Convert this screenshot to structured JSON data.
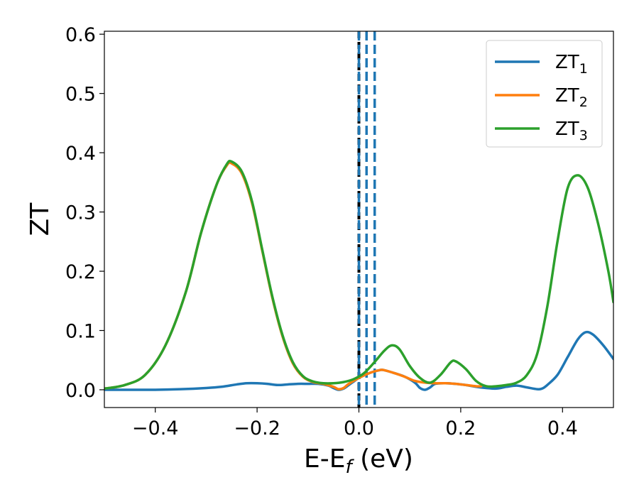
{
  "chart_data": {
    "type": "line",
    "xlabel": {
      "main": "E-E",
      "sub": "f",
      "suffix": " (eV)"
    },
    "ylabel": "ZT",
    "xlim": [
      -0.5,
      0.5
    ],
    "ylim": [
      -0.03,
      0.605
    ],
    "xticks": [
      {
        "value": -0.4,
        "label": "−0.4"
      },
      {
        "value": -0.2,
        "label": "−0.2"
      },
      {
        "value": 0.0,
        "label": "0.0"
      },
      {
        "value": 0.2,
        "label": "0.2"
      },
      {
        "value": 0.4,
        "label": "0.4"
      }
    ],
    "yticks": [
      {
        "value": 0.0,
        "label": "0.0"
      },
      {
        "value": 0.1,
        "label": "0.1"
      },
      {
        "value": 0.2,
        "label": "0.2"
      },
      {
        "value": 0.3,
        "label": "0.3"
      },
      {
        "value": 0.4,
        "label": "0.4"
      },
      {
        "value": 0.5,
        "label": "0.5"
      },
      {
        "value": 0.6,
        "label": "0.6"
      }
    ],
    "grid": false,
    "legend_position": "top-right",
    "series": [
      {
        "name": "ZT",
        "sub": "1",
        "color": "#1f77b4",
        "points": [
          [
            -0.5,
            0.0
          ],
          [
            -0.45,
            0.0
          ],
          [
            -0.4,
            0.0
          ],
          [
            -0.35,
            0.001
          ],
          [
            -0.3,
            0.003
          ],
          [
            -0.27,
            0.005
          ],
          [
            -0.24,
            0.009
          ],
          [
            -0.22,
            0.011
          ],
          [
            -0.2,
            0.011
          ],
          [
            -0.18,
            0.01
          ],
          [
            -0.16,
            0.008
          ],
          [
            -0.14,
            0.009
          ],
          [
            -0.12,
            0.01
          ],
          [
            -0.1,
            0.01
          ],
          [
            -0.08,
            0.01
          ],
          [
            -0.06,
            0.007
          ],
          [
            -0.05,
            0.003
          ],
          [
            -0.04,
            0.0
          ],
          [
            -0.03,
            0.002
          ],
          [
            -0.02,
            0.008
          ],
          [
            -0.01,
            0.014
          ],
          [
            0.0,
            0.02
          ],
          [
            0.02,
            0.028
          ],
          [
            0.04,
            0.033
          ],
          [
            0.05,
            0.033
          ],
          [
            0.07,
            0.028
          ],
          [
            0.09,
            0.022
          ],
          [
            0.11,
            0.012
          ],
          [
            0.12,
            0.003
          ],
          [
            0.13,
            0.0
          ],
          [
            0.14,
            0.004
          ],
          [
            0.15,
            0.01
          ],
          [
            0.17,
            0.011
          ],
          [
            0.19,
            0.01
          ],
          [
            0.21,
            0.008
          ],
          [
            0.23,
            0.005
          ],
          [
            0.25,
            0.003
          ],
          [
            0.27,
            0.002
          ],
          [
            0.29,
            0.005
          ],
          [
            0.31,
            0.007
          ],
          [
            0.33,
            0.004
          ],
          [
            0.35,
            0.001
          ],
          [
            0.36,
            0.002
          ],
          [
            0.37,
            0.008
          ],
          [
            0.39,
            0.025
          ],
          [
            0.41,
            0.055
          ],
          [
            0.43,
            0.085
          ],
          [
            0.445,
            0.097
          ],
          [
            0.46,
            0.093
          ],
          [
            0.48,
            0.075
          ],
          [
            0.5,
            0.052
          ]
        ]
      },
      {
        "name": "ZT",
        "sub": "2",
        "color": "#ff7f0e",
        "points": [
          [
            -0.5,
            0.002
          ],
          [
            -0.46,
            0.008
          ],
          [
            -0.42,
            0.025
          ],
          [
            -0.38,
            0.075
          ],
          [
            -0.34,
            0.165
          ],
          [
            -0.31,
            0.265
          ],
          [
            -0.28,
            0.345
          ],
          [
            -0.26,
            0.378
          ],
          [
            -0.25,
            0.382
          ],
          [
            -0.23,
            0.365
          ],
          [
            -0.21,
            0.315
          ],
          [
            -0.19,
            0.235
          ],
          [
            -0.17,
            0.155
          ],
          [
            -0.15,
            0.09
          ],
          [
            -0.13,
            0.045
          ],
          [
            -0.11,
            0.022
          ],
          [
            -0.09,
            0.013
          ],
          [
            -0.07,
            0.01
          ],
          [
            -0.05,
            0.005
          ],
          [
            -0.04,
            0.001
          ],
          [
            -0.03,
            0.003
          ],
          [
            -0.02,
            0.01
          ],
          [
            0.0,
            0.02
          ],
          [
            0.02,
            0.028
          ],
          [
            0.04,
            0.033
          ],
          [
            0.05,
            0.033
          ],
          [
            0.07,
            0.028
          ],
          [
            0.09,
            0.022
          ],
          [
            0.11,
            0.015
          ],
          [
            0.13,
            0.012
          ],
          [
            0.15,
            0.011
          ],
          [
            0.17,
            0.011
          ],
          [
            0.19,
            0.01
          ],
          [
            0.21,
            0.008
          ],
          [
            0.23,
            0.006
          ],
          [
            0.24,
            0.006
          ]
        ]
      },
      {
        "name": "ZT",
        "sub": "3",
        "color": "#2ca02c",
        "points": [
          [
            -0.5,
            0.002
          ],
          [
            -0.46,
            0.008
          ],
          [
            -0.42,
            0.025
          ],
          [
            -0.38,
            0.075
          ],
          [
            -0.34,
            0.165
          ],
          [
            -0.31,
            0.265
          ],
          [
            -0.28,
            0.345
          ],
          [
            -0.26,
            0.38
          ],
          [
            -0.25,
            0.385
          ],
          [
            -0.23,
            0.368
          ],
          [
            -0.21,
            0.318
          ],
          [
            -0.19,
            0.237
          ],
          [
            -0.17,
            0.157
          ],
          [
            -0.15,
            0.092
          ],
          [
            -0.13,
            0.047
          ],
          [
            -0.11,
            0.023
          ],
          [
            -0.09,
            0.014
          ],
          [
            -0.07,
            0.011
          ],
          [
            -0.05,
            0.011
          ],
          [
            -0.03,
            0.013
          ],
          [
            -0.01,
            0.018
          ],
          [
            0.01,
            0.028
          ],
          [
            0.03,
            0.046
          ],
          [
            0.05,
            0.066
          ],
          [
            0.065,
            0.075
          ],
          [
            0.08,
            0.068
          ],
          [
            0.1,
            0.04
          ],
          [
            0.12,
            0.02
          ],
          [
            0.14,
            0.012
          ],
          [
            0.16,
            0.025
          ],
          [
            0.18,
            0.046
          ],
          [
            0.19,
            0.048
          ],
          [
            0.21,
            0.035
          ],
          [
            0.23,
            0.015
          ],
          [
            0.25,
            0.006
          ],
          [
            0.27,
            0.006
          ],
          [
            0.29,
            0.008
          ],
          [
            0.31,
            0.012
          ],
          [
            0.33,
            0.025
          ],
          [
            0.35,
            0.06
          ],
          [
            0.37,
            0.14
          ],
          [
            0.39,
            0.25
          ],
          [
            0.41,
            0.34
          ],
          [
            0.43,
            0.362
          ],
          [
            0.45,
            0.34
          ],
          [
            0.47,
            0.28
          ],
          [
            0.49,
            0.2
          ],
          [
            0.5,
            0.148
          ]
        ]
      }
    ],
    "vlines": [
      {
        "x": 0.0,
        "color": "#000000",
        "style": "dashed",
        "role": "reference"
      },
      {
        "x": 0.0,
        "color": "#1f77b4",
        "style": "dashed"
      },
      {
        "x": 0.015,
        "color": "#1f77b4",
        "style": "dashed"
      },
      {
        "x": 0.031,
        "color": "#1f77b4",
        "style": "dashed"
      }
    ]
  }
}
